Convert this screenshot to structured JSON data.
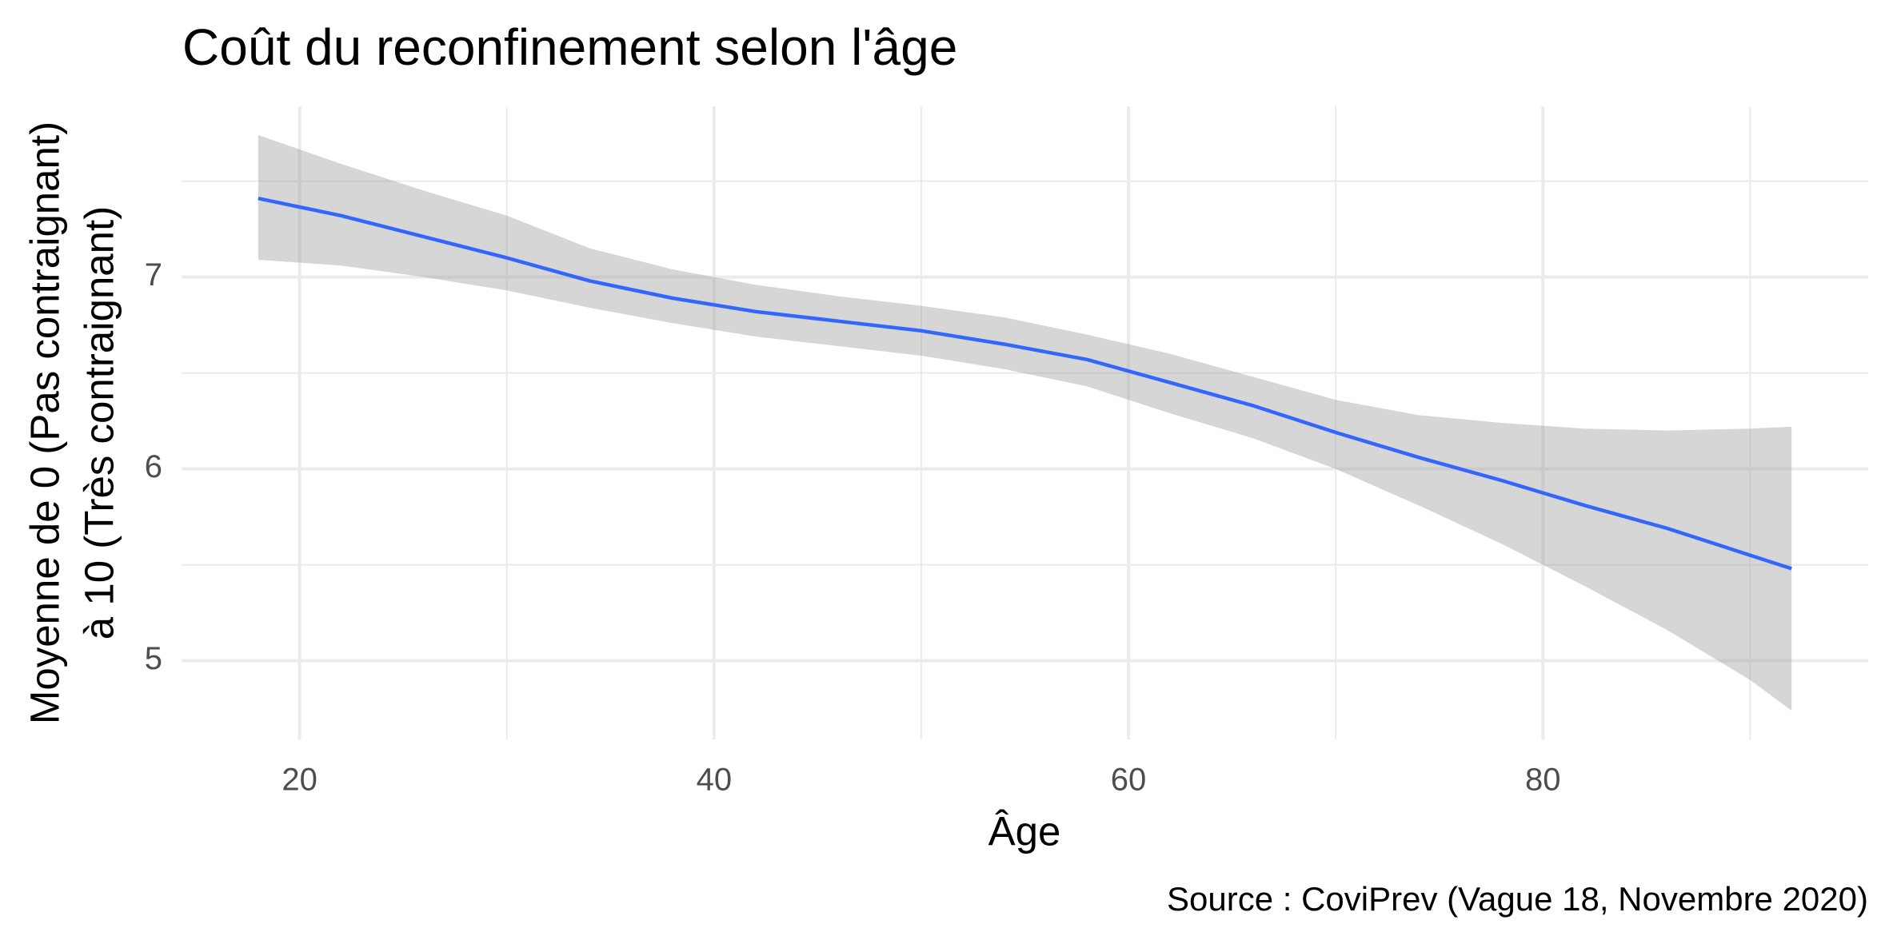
{
  "chart_data": {
    "type": "line",
    "title": "Coût du reconfinement selon l'âge",
    "xlabel": "Âge",
    "ylabel": [
      "Moyenne de 0 (Pas contraignant)",
      "à 10 (Très contraignant)"
    ],
    "caption": "Source : CoviPrev (Vague 18, Novembre 2020)",
    "x": [
      18,
      22,
      26,
      30,
      34,
      38,
      42,
      46,
      50,
      54,
      58,
      62,
      66,
      70,
      74,
      78,
      82,
      86,
      90,
      92
    ],
    "series": [
      {
        "color": "#3366ff",
        "values": [
          7.41,
          7.32,
          7.21,
          7.1,
          6.98,
          6.89,
          6.82,
          6.77,
          6.72,
          6.65,
          6.57,
          6.45,
          6.33,
          6.19,
          6.06,
          5.94,
          5.81,
          5.69,
          5.55,
          5.48
        ]
      }
    ],
    "ribbon": {
      "color": "#999999",
      "opacity": 0.4,
      "lower": [
        7.09,
        7.06,
        7.0,
        6.93,
        6.84,
        6.76,
        6.69,
        6.64,
        6.59,
        6.52,
        6.43,
        6.29,
        6.16,
        6.0,
        5.81,
        5.61,
        5.39,
        5.16,
        4.9,
        4.74
      ],
      "upper": [
        7.74,
        7.59,
        7.45,
        7.32,
        7.15,
        7.04,
        6.96,
        6.9,
        6.85,
        6.79,
        6.7,
        6.6,
        6.48,
        6.36,
        6.28,
        6.24,
        6.21,
        6.2,
        6.21,
        6.22
      ]
    },
    "xlim": [
      14.3,
      95.7
    ],
    "ylim": [
      4.59,
      7.89
    ],
    "xticks": [
      20,
      40,
      60,
      80
    ],
    "yticks": [
      5,
      6,
      7
    ],
    "xminor": [
      30,
      50,
      70,
      90
    ],
    "yminor": [
      5.5,
      6.5,
      7.5
    ],
    "grid": true
  }
}
